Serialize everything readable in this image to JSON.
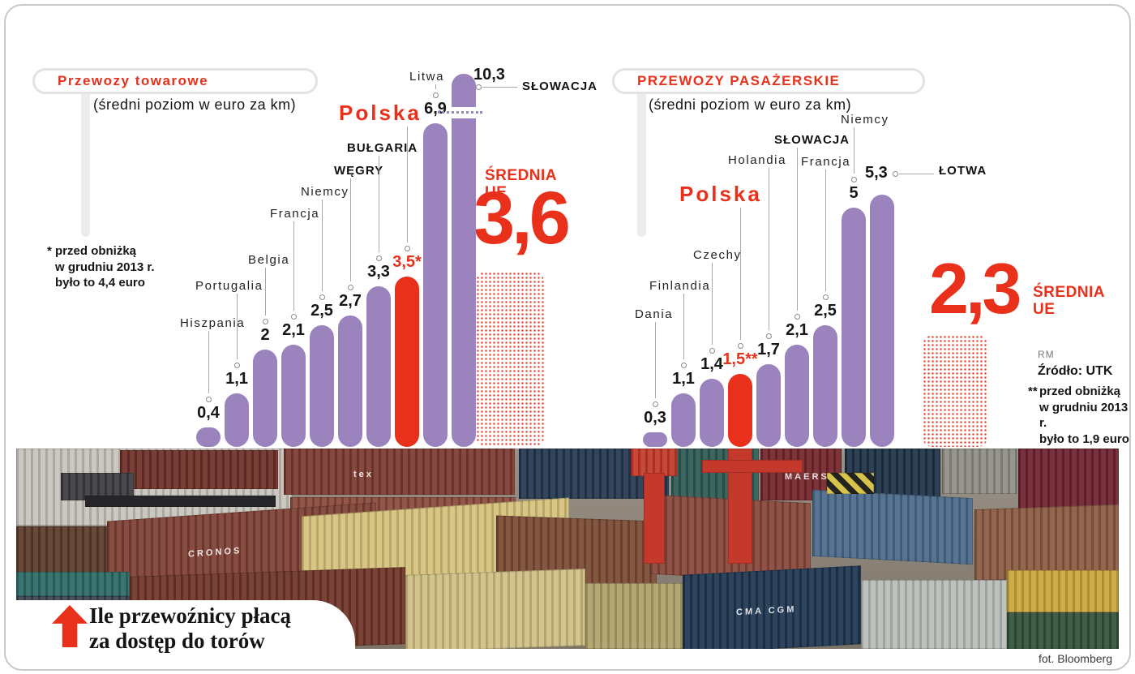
{
  "colors": {
    "accent_red": "#e8301b",
    "bar_purple": "#9b83bd",
    "leader_gray": "#a8a8a8",
    "frame_gray": "#c9c9c9"
  },
  "banner": {
    "title_line1": "Ile przewoźnicy płacą",
    "title_line2": "za dostęp do torów",
    "arrow_icon": "up-arrow"
  },
  "source": {
    "initials": "RM",
    "label": "Źródło: UTK"
  },
  "photo_credit": "fot. Bloomberg",
  "chart_data": [
    {
      "type": "bar",
      "title": "Przewozy towarowe",
      "subtitle": "(średni poziom w euro za km)",
      "unit": "euro za km",
      "categories": [
        "Hiszpania",
        "Portugalia",
        "Belgia",
        "Francja",
        "Niemcy",
        "WĘGRY",
        "BUŁGARIA",
        "Polska",
        "Litwa",
        "SŁOWACJA"
      ],
      "values": [
        0.4,
        1.1,
        2,
        2.1,
        2.5,
        2.7,
        3.3,
        3.5,
        6.9,
        10.3
      ],
      "value_labels": [
        "0,4",
        "1,1",
        "2",
        "2,1",
        "2,5",
        "2,7",
        "3,3",
        "3,5*",
        "6,9",
        "10,3"
      ],
      "highlight_category": "Polska",
      "axis_break_category": "SŁOWACJA",
      "side_label_category": "SŁOWACJA",
      "eu_average": {
        "label": "ŚREDNIA UE",
        "value": 3.6,
        "value_label": "3,6"
      },
      "footnote": {
        "marker": "*",
        "lines": [
          "przed obniżką",
          "w grudniu 2013 r.",
          "było to 4,4 euro"
        ]
      },
      "legend_position": "none",
      "grid": false
    },
    {
      "type": "bar",
      "title": "PRZEWOZY PASAŻERSKIE",
      "subtitle": "(średni poziom w euro za km)",
      "unit": "euro za km",
      "categories": [
        "Dania",
        "Finlandia",
        "Czechy",
        "Polska",
        "Holandia",
        "SŁOWACJA",
        "Francja",
        "Niemcy",
        "ŁOTWA"
      ],
      "values": [
        0.3,
        1.1,
        1.4,
        1.5,
        1.7,
        2.1,
        2.5,
        5,
        5.3
      ],
      "value_labels": [
        "0,3",
        "1,1",
        "1,4",
        "1,5**",
        "1,7",
        "2,1",
        "2,5",
        "5",
        "5,3"
      ],
      "highlight_category": "Polska",
      "axis_break_category": null,
      "side_label_category": "ŁOTWA",
      "eu_average": {
        "label": "ŚREDNIA UE",
        "value": 2.3,
        "value_label": "2,3"
      },
      "footnote": {
        "marker": "**",
        "lines": [
          "przed obniżką",
          "w grudniu 2013 r.",
          "było to 1,9 euro"
        ]
      },
      "legend_position": "none",
      "grid": false
    }
  ],
  "photo": {
    "description": "container terminal with stacked shipping containers, truck and red cranes",
    "blocks": [
      [
        0,
        0,
        340,
        95,
        "#c7c3bc",
        0,
        null
      ],
      [
        128,
        2,
        195,
        48,
        "#6e3028",
        0,
        null
      ],
      [
        55,
        30,
        90,
        34,
        "#3c3c40",
        0,
        null
      ],
      [
        85,
        58,
        235,
        14,
        "#26262a",
        0,
        null
      ],
      [
        330,
        0,
        285,
        57,
        "#7c3a30",
        0,
        "tex"
      ],
      [
        338,
        60,
        278,
        62,
        "#8a4a3c",
        0,
        null
      ],
      [
        620,
        0,
        185,
        62,
        "#24384f",
        0,
        null
      ],
      [
        808,
        0,
        108,
        68,
        "#2e5a55",
        0,
        null
      ],
      [
        918,
        0,
        100,
        64,
        "#74262b",
        0,
        "MAERSK"
      ],
      [
        1022,
        0,
        118,
        60,
        "#1d3147",
        0,
        null
      ],
      [
        1142,
        0,
        92,
        56,
        "#8e8e86",
        0,
        null
      ],
      [
        1236,
        0,
        124,
        78,
        "#6e2230",
        0,
        null
      ],
      [
        0,
        96,
        118,
        72,
        "#5d3a2a",
        0,
        null
      ],
      [
        112,
        78,
        332,
        94,
        "#7e4034",
        -4,
        "CRONOS"
      ],
      [
        352,
        72,
        330,
        100,
        "#d6c27c",
        -4,
        null
      ],
      [
        592,
        86,
        198,
        88,
        "#7b4a35",
        2,
        null
      ],
      [
        782,
        62,
        198,
        98,
        "#87463a",
        3,
        null
      ],
      [
        982,
        56,
        198,
        82,
        "#4a6a8a",
        3,
        null
      ],
      [
        1182,
        72,
        178,
        88,
        "#8a5a42",
        -2,
        null
      ],
      [
        0,
        152,
        140,
        30,
        "#2d6a66",
        0,
        null
      ],
      [
        0,
        182,
        140,
        65,
        "#3a4450",
        0,
        null
      ],
      [
        140,
        152,
        340,
        95,
        "#6f3528",
        -2,
        null
      ],
      [
        480,
        152,
        222,
        95,
        "#cfc083",
        -2,
        null
      ],
      [
        702,
        166,
        180,
        81,
        "#b0a16a",
        0,
        null
      ],
      [
        822,
        150,
        220,
        97,
        "#1e3550",
        -3,
        "CMA CGM"
      ],
      [
        1042,
        162,
        180,
        85,
        "#b9bdb9",
        0,
        null
      ],
      [
        1222,
        150,
        138,
        52,
        "#c9a83c",
        0,
        null
      ],
      [
        1222,
        202,
        138,
        45,
        "#34523a",
        0,
        null
      ],
      [
        878,
        0,
        30,
        142,
        "#c4392c",
        0,
        null
      ],
      [
        846,
        14,
        124,
        16,
        "#c4392c",
        0,
        null
      ],
      [
        758,
        0,
        58,
        34,
        "#c4392c",
        0,
        null
      ],
      [
        774,
        30,
        26,
        112,
        "#c4392c",
        0,
        null
      ]
    ],
    "hazard_block": [
      1000,
      30,
      58,
      26
    ]
  }
}
